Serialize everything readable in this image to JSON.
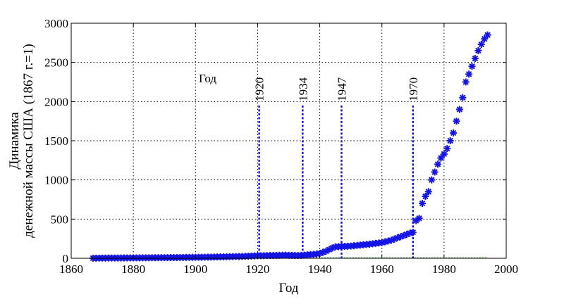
{
  "chart_data": {
    "type": "scatter",
    "title": "",
    "xlabel": "Год",
    "ylabel_lines": [
      "Динамика",
      "денежной массы США (1867 г.=1)"
    ],
    "xlim": [
      1860,
      2000
    ],
    "ylim": [
      0,
      3000
    ],
    "xticks": [
      1860,
      1880,
      1900,
      1920,
      1940,
      1960,
      1980,
      2000
    ],
    "yticks": [
      0,
      500,
      1000,
      1500,
      2000,
      2500,
      3000
    ],
    "xtick_labels": [
      "1860",
      "1880",
      "1900",
      "1920",
      "1940",
      "1960",
      "1980",
      "2000"
    ],
    "ytick_labels": [
      "0",
      "500",
      "1000",
      "1500",
      "2000",
      "2500",
      "3000"
    ],
    "grid": true,
    "marker_color": "#1414e6",
    "baseline_color": "#1a8a1a",
    "series": [
      {
        "marker": "asterisk",
        "x": [
          1867,
          1868,
          1869,
          1870,
          1871,
          1872,
          1873,
          1874,
          1875,
          1876,
          1877,
          1878,
          1879,
          1880,
          1881,
          1882,
          1883,
          1884,
          1885,
          1886,
          1887,
          1888,
          1889,
          1890,
          1891,
          1892,
          1893,
          1894,
          1895,
          1896,
          1897,
          1898,
          1899,
          1900,
          1901,
          1902,
          1903,
          1904,
          1905,
          1906,
          1907,
          1908,
          1909,
          1910,
          1911,
          1912,
          1913,
          1914,
          1915,
          1916,
          1917,
          1918,
          1919,
          1920,
          1921,
          1922,
          1923,
          1924,
          1925,
          1926,
          1927,
          1928,
          1929,
          1930,
          1931,
          1932,
          1933,
          1934,
          1935,
          1936,
          1937,
          1938,
          1939,
          1940,
          1941,
          1942,
          1943,
          1944,
          1945,
          1946,
          1947,
          1948,
          1949,
          1950,
          1951,
          1952,
          1953,
          1954,
          1955,
          1956,
          1957,
          1958,
          1959,
          1960,
          1961,
          1962,
          1963,
          1964,
          1965,
          1966,
          1967,
          1968,
          1969,
          1970,
          1971,
          1972,
          1973,
          1974,
          1975,
          1976,
          1977,
          1978,
          1979,
          1980,
          1981,
          1982,
          1983,
          1984,
          1985,
          1986,
          1987,
          1988,
          1989,
          1990,
          1991,
          1992,
          1993,
          1994
        ],
        "y": [
          1,
          1,
          2,
          2,
          2,
          3,
          3,
          3,
          3,
          3,
          4,
          4,
          4,
          5,
          5,
          5,
          6,
          6,
          6,
          7,
          7,
          7,
          8,
          8,
          8,
          9,
          9,
          9,
          10,
          10,
          11,
          11,
          12,
          12,
          13,
          13,
          14,
          15,
          15,
          16,
          17,
          18,
          18,
          19,
          20,
          21,
          22,
          22,
          23,
          25,
          27,
          28,
          30,
          32,
          32,
          33,
          34,
          35,
          36,
          37,
          38,
          39,
          40,
          38,
          37,
          36,
          35,
          37,
          40,
          44,
          48,
          50,
          55,
          62,
          75,
          90,
          110,
          130,
          145,
          148,
          150,
          152,
          154,
          156,
          160,
          164,
          168,
          172,
          176,
          180,
          185,
          190,
          195,
          200,
          210,
          220,
          230,
          245,
          260,
          275,
          290,
          305,
          320,
          330,
          480,
          510,
          700,
          790,
          850,
          1000,
          1100,
          1200,
          1280,
          1330,
          1400,
          1500,
          1600,
          1750,
          1900,
          2050,
          2250,
          2350,
          2450,
          2550,
          2650,
          2730,
          2800,
          2850
        ]
      }
    ],
    "vlines": [
      {
        "x": 1920.5,
        "label": "1920"
      },
      {
        "x": 1934.5,
        "label": "1934"
      },
      {
        "x": 1947,
        "label": "1947"
      },
      {
        "x": 1970,
        "label": "1970"
      }
    ],
    "annotation": "Год"
  }
}
